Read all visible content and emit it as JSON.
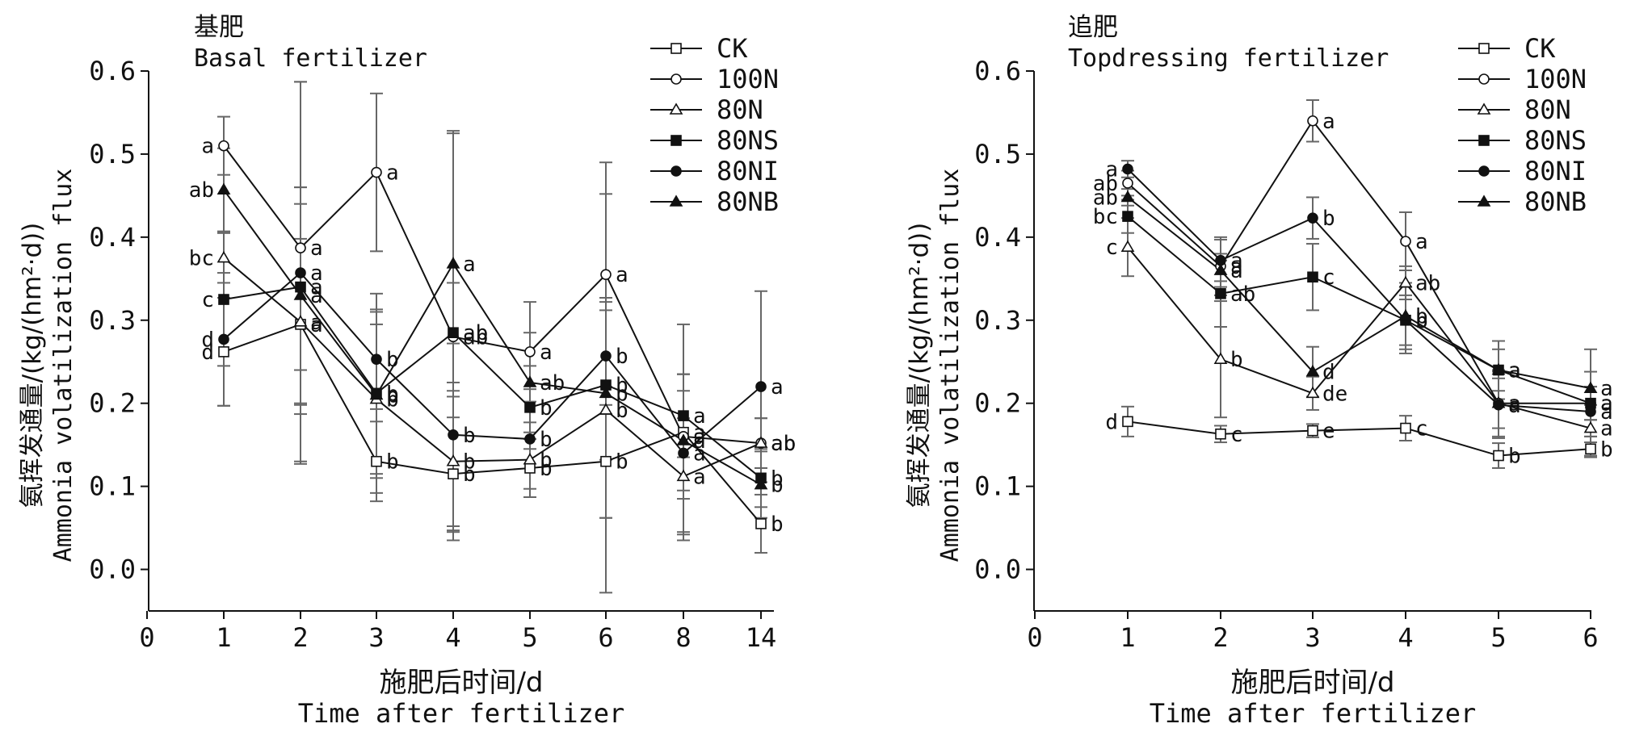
{
  "chart_data": [
    {
      "type": "line",
      "title": "基肥",
      "subtitle": "Basal fertilizer",
      "ylabel_cn": "氨挥发通量/(kg/(hm²·d))",
      "ylabel_en": "Ammonia volatilization flux",
      "xlabel_cn": "施肥后时间/d",
      "xlabel_en": "Time after fertilizer",
      "ylim": [
        -0.05,
        0.6
      ],
      "yticks": [
        "0.0",
        "0.1",
        "0.2",
        "0.3",
        "0.4",
        "0.5",
        "0.6"
      ],
      "ytick_values": [
        0,
        0.1,
        0.2,
        0.3,
        0.4,
        0.5,
        0.6
      ],
      "xtick_labels": [
        "0",
        "1",
        "2",
        "3",
        "4",
        "5",
        "6",
        "8",
        "14"
      ],
      "categories": [
        "1",
        "2",
        "3",
        "4",
        "5",
        "6",
        "8",
        "14"
      ],
      "legend_position": "top-right",
      "grid": false,
      "series": [
        {
          "name": "CK",
          "marker": "square-open",
          "values": [
            0.262,
            0.295,
            0.13,
            0.115,
            0.122,
            0.13,
            0.165,
            0.055
          ],
          "errors": [
            0.065,
            0.165,
            0.048,
            0.068,
            0.035,
            0.068,
            0.13,
            0.035
          ]
        },
        {
          "name": "100N",
          "marker": "circle-open",
          "values": [
            0.51,
            0.387,
            0.478,
            0.28,
            0.262,
            0.355,
            0.16,
            0.152
          ],
          "errors": [
            0.035,
            0.2,
            0.095,
            0.245,
            0.06,
            0.135,
            0.075,
            0.03
          ]
        },
        {
          "name": "80N",
          "marker": "triangle-open",
          "values": [
            0.375,
            0.298,
            0.205,
            0.13,
            0.132,
            0.192,
            0.112,
            0.152
          ],
          "errors": [
            0.03,
            0.1,
            0.09,
            0.085,
            0.045,
            0.13,
            0.07,
            0.03
          ]
        },
        {
          "name": "80NS",
          "marker": "square-filled",
          "values": [
            0.325,
            0.34,
            0.212,
            0.285,
            0.195,
            0.222,
            0.185,
            0.11
          ],
          "errors": [
            0.08,
            0.1,
            0.12,
            0.06,
            0.05,
            0.09,
            0.05,
            0.035
          ]
        },
        {
          "name": "80NI",
          "marker": "circle-filled",
          "values": [
            0.277,
            0.357,
            0.253,
            0.162,
            0.157,
            0.257,
            0.14,
            0.22
          ],
          "errors": [
            0.08,
            0.23,
            0.06,
            0.11,
            0.06,
            0.07,
            0.095,
            0.115
          ]
        },
        {
          "name": "80NB",
          "marker": "triangle-filled",
          "values": [
            0.457,
            0.33,
            0.21,
            0.368,
            0.225,
            0.212,
            0.155,
            0.102
          ],
          "errors": [
            0.05,
            0.13,
            0.1,
            0.16,
            0.06,
            0.24,
            0.06,
            0.04
          ]
        }
      ],
      "annotations": [
        {
          "series": "CK",
          "labels": [
            "d",
            "a",
            "b",
            "b",
            "b",
            "b",
            "a",
            "b"
          ]
        },
        {
          "series": "100N",
          "labels": [
            "a",
            "a",
            "a",
            "ab",
            "a",
            "a",
            "a",
            "ab"
          ]
        },
        {
          "series": "80N",
          "labels": [
            "bc",
            "a",
            "b",
            "b",
            "b",
            "b",
            "a",
            "ab"
          ]
        },
        {
          "series": "80NS",
          "labels": [
            "c",
            "a",
            "b",
            "ab",
            "b",
            "b",
            "a",
            "b"
          ]
        },
        {
          "series": "80NI",
          "labels": [
            "d",
            "a",
            "b",
            "b",
            "b",
            "b",
            "a",
            "a"
          ]
        },
        {
          "series": "80NB",
          "labels": [
            "ab",
            "a",
            "b",
            "a",
            "ab",
            "b",
            "a",
            "b"
          ]
        }
      ]
    },
    {
      "type": "line",
      "title": "追肥",
      "subtitle": "Topdressing fertilizer",
      "ylabel_cn": "氨挥发通量/(kg/(hm²·d))",
      "ylabel_en": "Ammonia volatilization flux",
      "xlabel_cn": "施肥后时间/d",
      "xlabel_en": "Time after fertilizer",
      "ylim": [
        -0.05,
        0.6
      ],
      "yticks": [
        "0.0",
        "0.1",
        "0.2",
        "0.3",
        "0.4",
        "0.5",
        "0.6"
      ],
      "ytick_values": [
        0,
        0.1,
        0.2,
        0.3,
        0.4,
        0.5,
        0.6
      ],
      "xtick_labels": [
        "0",
        "1",
        "2",
        "3",
        "4",
        "5",
        "6"
      ],
      "categories": [
        "1",
        "2",
        "3",
        "4",
        "5",
        "6"
      ],
      "legend_position": "top-right",
      "grid": false,
      "series": [
        {
          "name": "CK",
          "marker": "square-open",
          "values": [
            0.178,
            0.163,
            0.167,
            0.17,
            0.137,
            0.145
          ],
          "errors": [
            0.018,
            0.01,
            0.008,
            0.015,
            0.015,
            0.008
          ]
        },
        {
          "name": "100N",
          "marker": "circle-open",
          "values": [
            0.465,
            0.365,
            0.54,
            0.395,
            0.2,
            0.2
          ],
          "errors": [
            0.015,
            0.035,
            0.025,
            0.035,
            0.04,
            0.02
          ]
        },
        {
          "name": "80N",
          "marker": "triangle-open",
          "values": [
            0.388,
            0.253,
            0.212,
            0.345,
            0.2,
            0.17
          ],
          "errors": [
            0.035,
            0.07,
            0.02,
            0.02,
            0.03,
            0.01
          ]
        },
        {
          "name": "80NS",
          "marker": "square-filled",
          "values": [
            0.425,
            0.332,
            0.352,
            0.3,
            0.24,
            0.2
          ],
          "errors": [
            0.02,
            0.04,
            0.04,
            0.03,
            0.035,
            0.065
          ]
        },
        {
          "name": "80NI",
          "marker": "circle-filled",
          "values": [
            0.482,
            0.372,
            0.423,
            0.3,
            0.198,
            0.19
          ],
          "errors": [
            0.01,
            0.025,
            0.025,
            0.04,
            0.04,
            0.03
          ]
        },
        {
          "name": "80NB",
          "marker": "triangle-filled",
          "values": [
            0.448,
            0.36,
            0.238,
            0.305,
            0.24,
            0.218
          ],
          "errors": [
            0.01,
            0.02,
            0.03,
            0.04,
            0.025,
            0.02
          ]
        }
      ],
      "annotations": [
        {
          "series": "CK",
          "labels": [
            "d",
            "c",
            "e",
            "c",
            "b",
            "b"
          ]
        },
        {
          "series": "100N",
          "labels": [
            "ab",
            "a",
            "a",
            "a",
            "a",
            "a"
          ]
        },
        {
          "series": "80N",
          "labels": [
            "c",
            "b",
            "de",
            "ab",
            "a",
            "a"
          ]
        },
        {
          "series": "80NS",
          "labels": [
            "bc",
            "ab",
            "c",
            "b",
            "a",
            "a"
          ]
        },
        {
          "series": "80NI",
          "labels": [
            "a",
            "a",
            "b",
            "b",
            "a",
            "a"
          ]
        },
        {
          "series": "80NB",
          "labels": [
            "ab",
            "a",
            "d",
            "b",
            "a",
            "a"
          ]
        }
      ]
    }
  ]
}
